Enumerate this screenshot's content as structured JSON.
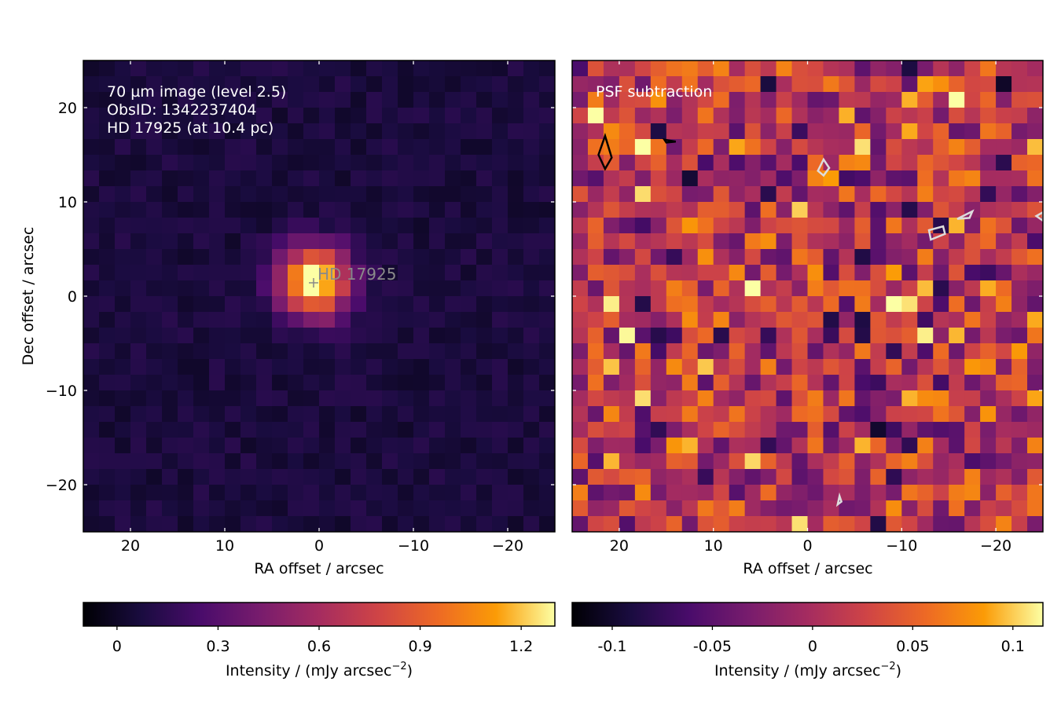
{
  "chart_data": [
    {
      "type": "heatmap",
      "annotations": [
        "70 µm image (level 2.5)",
        "ObsID: 1342237404",
        "HD 17925 (at 10.4 pc)"
      ],
      "source_label": "HD  17925",
      "xlabel": "RA offset / arcsec",
      "ylabel": "Dec offset / arcsec",
      "xlim": [
        25,
        -25
      ],
      "ylim": [
        -25,
        25
      ],
      "xticks": [
        20,
        10,
        0,
        -10,
        -20
      ],
      "xtick_labels": [
        "20",
        "10",
        "0",
        "−10",
        "−20"
      ],
      "yticks": [
        20,
        10,
        0,
        -10,
        -20
      ],
      "ytick_labels": [
        "20",
        "10",
        "0",
        "−10",
        "−20"
      ],
      "colormap": "inferno",
      "colorbar": {
        "label": "Intensity / (mJy arcsec",
        "label_exponent": "−2",
        "label_suffix": ")",
        "range": [
          -0.1,
          1.3
        ],
        "ticks": [
          0,
          0.3,
          0.6,
          0.9,
          1.2
        ],
        "tick_labels": [
          "0",
          "0.3",
          "0.6",
          "0.9",
          "1.2"
        ]
      },
      "peak": {
        "ra": 0.5,
        "dec": 1.5,
        "value": 1.3
      },
      "background_level": 0.07
    },
    {
      "type": "heatmap",
      "annotations": [
        "PSF subtraction"
      ],
      "xlabel": "RA offset / arcsec",
      "xlim": [
        25,
        -25
      ],
      "ylim": [
        -25,
        25
      ],
      "xticks": [
        20,
        10,
        0,
        -10,
        -20
      ],
      "xtick_labels": [
        "20",
        "10",
        "0",
        "−10",
        "−20"
      ],
      "colormap": "inferno",
      "colorbar": {
        "label": "Intensity / (mJy arcsec",
        "label_exponent": "−2",
        "label_suffix": ")",
        "range": [
          -0.12,
          0.115
        ],
        "ticks": [
          -0.1,
          -0.05,
          0,
          0.05,
          0.1
        ],
        "tick_labels": [
          "-0.1",
          "-0.05",
          "0",
          "0.05",
          "0.1"
        ]
      },
      "contours_arcsec": [
        {
          "color": "#000000",
          "points": [
            [
              21.5,
              17
            ],
            [
              20.8,
              14.7
            ],
            [
              21.5,
              13.5
            ],
            [
              22.2,
              15
            ]
          ]
        },
        {
          "color": "#000000",
          "points": [
            [
              15.2,
              16.6
            ],
            [
              14,
              16.4
            ],
            [
              15,
              16.3
            ]
          ]
        },
        {
          "color": "#dddddd",
          "points": [
            [
              -1.7,
              14.5
            ],
            [
              -1.1,
              13.3
            ],
            [
              -1.7,
              12.8
            ],
            [
              -2.3,
              13.6
            ]
          ]
        },
        {
          "color": "#dddddd",
          "points": [
            [
              -12.9,
              7
            ],
            [
              -14.4,
              7.4
            ],
            [
              -14.6,
              6.6
            ],
            [
              -13.1,
              6
            ]
          ]
        },
        {
          "color": "#dddddd",
          "points": [
            [
              -15.9,
              8.2
            ],
            [
              -17.5,
              9
            ],
            [
              -17.2,
              8.3
            ]
          ]
        },
        {
          "color": "#dddddd",
          "points": [
            [
              -24.3,
              8.5
            ],
            [
              -25,
              8.9
            ],
            [
              -25,
              8
            ]
          ]
        },
        {
          "color": "#dddddd",
          "points": [
            [
              -3.4,
              -21.2
            ],
            [
              -3.2,
              -22.1
            ],
            [
              -3.6,
              -21.8
            ]
          ]
        }
      ]
    }
  ]
}
